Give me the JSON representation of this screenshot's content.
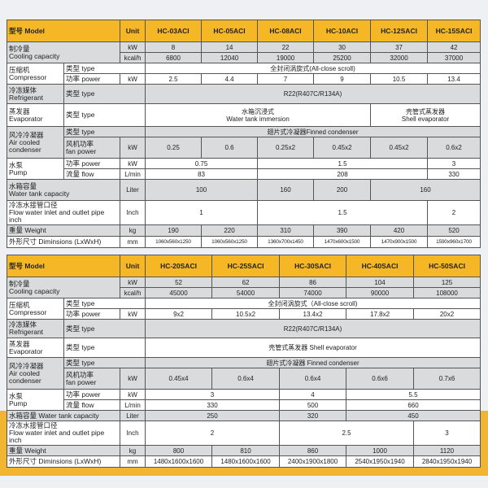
{
  "colors": {
    "header": "#f5b726",
    "gray_row": "#dadbdd",
    "band": "#f2b531",
    "background": "#eef0f4"
  },
  "tables": [
    {
      "rows": [
        {
          "style": "header",
          "cells": [
            {
              "text": "型号 Model",
              "cs": 2,
              "lbl": true
            },
            {
              "text": "Unit"
            },
            {
              "text": "HC-03ACI"
            },
            {
              "text": "HC-05ACI"
            },
            {
              "text": "HC-08ACI"
            },
            {
              "text": "HC-10ACI"
            },
            {
              "text": "HC-12SACI"
            },
            {
              "text": "HC-15SACI"
            }
          ]
        },
        {
          "style": "gray",
          "cells": [
            {
              "text": "制冷量\nCooling capacity",
              "cs": 2,
              "rs": 2,
              "lbl": true
            },
            {
              "text": "kW"
            },
            {
              "text": "8"
            },
            {
              "text": "14"
            },
            {
              "text": "22"
            },
            {
              "text": "30"
            },
            {
              "text": "37"
            },
            {
              "text": "42"
            }
          ]
        },
        {
          "style": "gray",
          "cells": [
            {
              "text": "kcal/h"
            },
            {
              "text": "6800"
            },
            {
              "text": "12040"
            },
            {
              "text": "19000"
            },
            {
              "text": "25200"
            },
            {
              "text": "32000"
            },
            {
              "text": "37000"
            }
          ]
        },
        {
          "style": "white",
          "cells": [
            {
              "text": "压缩机\nCompressor",
              "rs": 2,
              "lbl": true
            },
            {
              "text": "类型 type",
              "cs": 2,
              "lbl": true
            },
            {
              "text": "全封闭涡旋式(All-close scroll)",
              "cs": 6
            }
          ]
        },
        {
          "style": "white",
          "cells": [
            {
              "text": "功率 power",
              "lbl": true
            },
            {
              "text": "kW"
            },
            {
              "text": "2.5"
            },
            {
              "text": "4.4"
            },
            {
              "text": "7"
            },
            {
              "text": "9"
            },
            {
              "text": "10.5"
            },
            {
              "text": "13.4"
            }
          ]
        },
        {
          "style": "gray",
          "cells": [
            {
              "text": "冷冻媒体\nRefrigerant",
              "lbl": true
            },
            {
              "text": "类型 type",
              "cs": 2,
              "lbl": true
            },
            {
              "text": "R22(R407C/R134A)",
              "cs": 6
            }
          ]
        },
        {
          "style": "white",
          "cells": [
            {
              "text": "蒸发器\nEvaporator",
              "lbl": true
            },
            {
              "text": "类型 type",
              "cs": 2,
              "lbl": true
            },
            {
              "text": "水箱沉浸式\nWater tank immersion",
              "cs": 4
            },
            {
              "text": "壳管式蒸发器\nShell evaporator",
              "cs": 2
            }
          ]
        },
        {
          "style": "gray",
          "cells": [
            {
              "text": "风冷冷凝器\nAir cooled condenser",
              "rs": 2,
              "lbl": true
            },
            {
              "text": "类型 type",
              "cs": 2,
              "lbl": true
            },
            {
              "text": "翅片式冷凝器Finned condenser",
              "cs": 6
            }
          ]
        },
        {
          "style": "gray",
          "cells": [
            {
              "text": "风机功率\nfan power",
              "lbl": true
            },
            {
              "text": "kW"
            },
            {
              "text": "0.25"
            },
            {
              "text": "0.6"
            },
            {
              "text": "0.25x2"
            },
            {
              "text": "0.45x2"
            },
            {
              "text": "0.45x2"
            },
            {
              "text": "0.6x2"
            }
          ]
        },
        {
          "style": "white",
          "cells": [
            {
              "text": "水泵\nPump",
              "rs": 2,
              "lbl": true
            },
            {
              "text": "功率 power",
              "lbl": true
            },
            {
              "text": "kW"
            },
            {
              "text": "0.75",
              "cs": 2
            },
            {
              "text": "1.5",
              "cs": 3
            },
            {
              "text": "3"
            }
          ]
        },
        {
          "style": "white",
          "cells": [
            {
              "text": "流量 flow",
              "lbl": true
            },
            {
              "text": "L/min"
            },
            {
              "text": "83",
              "cs": 2
            },
            {
              "text": "208",
              "cs": 3
            },
            {
              "text": "330"
            }
          ]
        },
        {
          "style": "gray",
          "cells": [
            {
              "text": "水箱容量\nWater tank capacity",
              "cs": 2,
              "lbl": true
            },
            {
              "text": "Liter"
            },
            {
              "text": "100",
              "cs": 2
            },
            {
              "text": "160"
            },
            {
              "text": "200"
            },
            {
              "text": "160",
              "cs": 2
            }
          ]
        },
        {
          "style": "white",
          "cells": [
            {
              "text": "冷冻水接管口径\nFlow water inlet and outlet pipe inch",
              "cs": 2,
              "lbl": true
            },
            {
              "text": "Inch"
            },
            {
              "text": "1",
              "cs": 2
            },
            {
              "text": "1.5",
              "cs": 3
            },
            {
              "text": "2"
            }
          ]
        },
        {
          "style": "gray",
          "cells": [
            {
              "text": "重量 Weight",
              "cs": 2,
              "lbl": true
            },
            {
              "text": "kg"
            },
            {
              "text": "190"
            },
            {
              "text": "220"
            },
            {
              "text": "310"
            },
            {
              "text": "390"
            },
            {
              "text": "420"
            },
            {
              "text": "520"
            }
          ]
        },
        {
          "style": "white",
          "cells": [
            {
              "text": "外形尺寸 Diminsions (LxWxH)",
              "cs": 2,
              "lbl": true
            },
            {
              "text": "mm"
            },
            {
              "text": "1060x560x1250",
              "small": true
            },
            {
              "text": "1060x560x1250",
              "small": true
            },
            {
              "text": "1360x700x1450",
              "small": true
            },
            {
              "text": "1470x600x1500",
              "small": true
            },
            {
              "text": "1470x900x1500",
              "small": true
            },
            {
              "text": "1590x960x1700",
              "small": true
            }
          ]
        }
      ]
    },
    {
      "rows": [
        {
          "style": "header",
          "cells": [
            {
              "text": "型号 Model",
              "cs": 2,
              "lbl": true
            },
            {
              "text": "Unit"
            },
            {
              "text": "HC-20SACI"
            },
            {
              "text": "HC-25SACI"
            },
            {
              "text": "HC-30SACI"
            },
            {
              "text": "HC-40SACI"
            },
            {
              "text": "HC-50SACI"
            }
          ]
        },
        {
          "style": "gray",
          "cells": [
            {
              "text": "制冷量\nCooling capacity",
              "cs": 2,
              "rs": 2,
              "lbl": true
            },
            {
              "text": "kW"
            },
            {
              "text": "52"
            },
            {
              "text": "62"
            },
            {
              "text": "86"
            },
            {
              "text": "104"
            },
            {
              "text": "125"
            }
          ]
        },
        {
          "style": "gray",
          "cells": [
            {
              "text": "kcal/h"
            },
            {
              "text": "45000"
            },
            {
              "text": "54000"
            },
            {
              "text": "74000"
            },
            {
              "text": "90000"
            },
            {
              "text": "108000"
            }
          ]
        },
        {
          "style": "white",
          "cells": [
            {
              "text": "压缩机\nCompressor",
              "rs": 2,
              "lbl": true
            },
            {
              "text": "类型 type",
              "cs": 2,
              "lbl": true
            },
            {
              "text": "全封闭涡旋式（All-close scroll)",
              "cs": 5
            }
          ]
        },
        {
          "style": "white",
          "cells": [
            {
              "text": "功率 power",
              "lbl": true
            },
            {
              "text": "kW"
            },
            {
              "text": "9x2"
            },
            {
              "text": "10.5x2"
            },
            {
              "text": "13.4x2"
            },
            {
              "text": "17.8x2"
            },
            {
              "text": "20x2"
            }
          ]
        },
        {
          "style": "gray",
          "cells": [
            {
              "text": "冷冻媒体\nRefrigerant",
              "lbl": true
            },
            {
              "text": "类型 type",
              "cs": 2,
              "lbl": true
            },
            {
              "text": "R22(R407C/R134A)",
              "cs": 5
            }
          ]
        },
        {
          "style": "white",
          "cells": [
            {
              "text": "蒸发器\nEvaporator",
              "lbl": true
            },
            {
              "text": "类型 type",
              "cs": 2,
              "lbl": true
            },
            {
              "text": "壳管式蒸发器 Shell evaporator",
              "cs": 5
            }
          ]
        },
        {
          "style": "gray",
          "cells": [
            {
              "text": "风冷冷凝器\nAir cooled condenser",
              "rs": 2,
              "lbl": true
            },
            {
              "text": "类型 type",
              "cs": 2,
              "lbl": true
            },
            {
              "text": "翅片式冷凝器 Finned condenser",
              "cs": 5
            }
          ]
        },
        {
          "style": "gray",
          "cells": [
            {
              "text": "风机功率\nfan power",
              "lbl": true
            },
            {
              "text": "kW"
            },
            {
              "text": "0.45x4"
            },
            {
              "text": "0.6x4"
            },
            {
              "text": "0.6x4"
            },
            {
              "text": "0.6x6"
            },
            {
              "text": "0.7x6"
            }
          ]
        },
        {
          "style": "white",
          "cells": [
            {
              "text": "水泵\nPump",
              "rs": 2,
              "lbl": true
            },
            {
              "text": "功率 power",
              "lbl": true
            },
            {
              "text": "kW"
            },
            {
              "text": "3",
              "cs": 2
            },
            {
              "text": "4"
            },
            {
              "text": "5.5",
              "cs": 2
            }
          ]
        },
        {
          "style": "white",
          "cells": [
            {
              "text": "流量 flow",
              "lbl": true
            },
            {
              "text": "L/min"
            },
            {
              "text": "330",
              "cs": 2
            },
            {
              "text": "500"
            },
            {
              "text": "660",
              "cs": 2
            }
          ]
        },
        {
          "style": "gray",
          "cells": [
            {
              "text": "水箱容量 Water tank capacity",
              "cs": 2,
              "lbl": true
            },
            {
              "text": "Liter"
            },
            {
              "text": "250",
              "cs": 2
            },
            {
              "text": "320"
            },
            {
              "text": "450",
              "cs": 2
            }
          ]
        },
        {
          "style": "white",
          "cells": [
            {
              "text": "冷冻水接管口径\nFlow water inlet and outlet pipe inch",
              "cs": 2,
              "lbl": true
            },
            {
              "text": "Inch"
            },
            {
              "text": "2",
              "cs": 2
            },
            {
              "text": "2.5",
              "cs": 2
            },
            {
              "text": "3"
            }
          ]
        },
        {
          "style": "gray",
          "cells": [
            {
              "text": "重量 Weight",
              "cs": 2,
              "lbl": true
            },
            {
              "text": "kg"
            },
            {
              "text": "800"
            },
            {
              "text": "810"
            },
            {
              "text": "860"
            },
            {
              "text": "1000"
            },
            {
              "text": "1120"
            }
          ]
        },
        {
          "style": "white",
          "cells": [
            {
              "text": "外形尺寸 Diminsions (LxWxH)",
              "cs": 2,
              "lbl": true
            },
            {
              "text": "mm"
            },
            {
              "text": "1480x1600x1600"
            },
            {
              "text": "1480x1600x1600"
            },
            {
              "text": "2400x1900x1800"
            },
            {
              "text": "2540x1950x1940"
            },
            {
              "text": "2840x1950x1940"
            }
          ]
        }
      ]
    }
  ]
}
